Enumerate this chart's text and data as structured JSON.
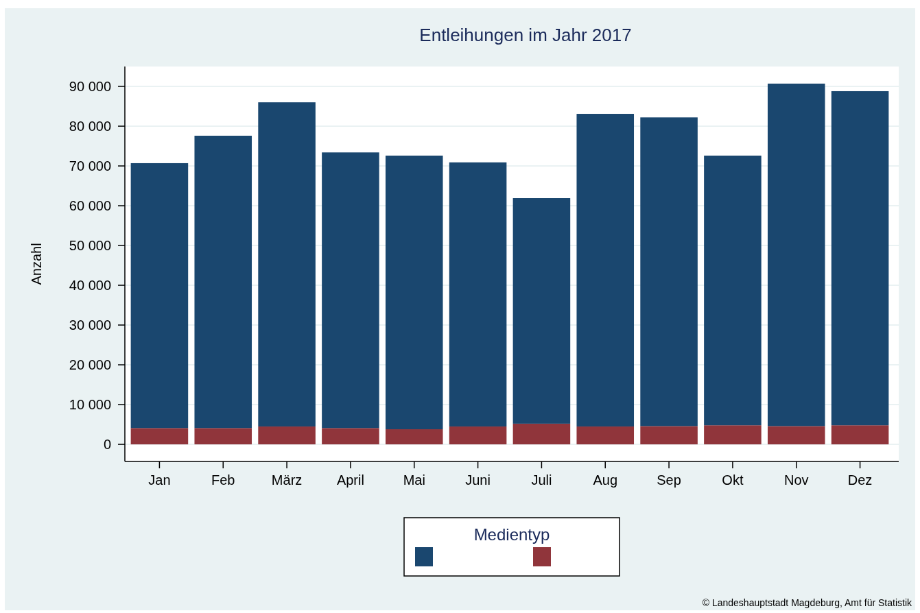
{
  "chart_data": {
    "type": "bar",
    "title": "Entleihungen im Jahr 2017",
    "ylabel": "Anzahl",
    "legend_title": "Medientyp",
    "stacked": true,
    "grid": "y",
    "categories": [
      "Jan",
      "Feb",
      "März",
      "April",
      "Mai",
      "Juni",
      "Juli",
      "Aug",
      "Sep",
      "Okt",
      "Nov",
      "Dez"
    ],
    "series": [
      {
        "color": "#90353b",
        "values": [
          4100,
          4100,
          4500,
          4100,
          3800,
          4500,
          5200,
          4500,
          4600,
          4800,
          4600,
          4800
        ]
      },
      {
        "color": "#1a476f",
        "values": [
          66600,
          73500,
          81500,
          69300,
          68800,
          66400,
          56700,
          78600,
          77600,
          67800,
          86100,
          84000
        ]
      }
    ],
    "ylim": [
      -4300,
      95000
    ],
    "yticks": [
      {
        "value": 0,
        "label": "0"
      },
      {
        "value": 10000,
        "label": "10 000"
      },
      {
        "value": 20000,
        "label": "20 000"
      },
      {
        "value": 30000,
        "label": "30 000"
      },
      {
        "value": 40000,
        "label": "40 000"
      },
      {
        "value": 50000,
        "label": "50 000"
      },
      {
        "value": 60000,
        "label": "60 000"
      },
      {
        "value": 70000,
        "label": "70 000"
      },
      {
        "value": 80000,
        "label": "80 000"
      },
      {
        "value": 90000,
        "label": "90 000"
      }
    ],
    "annotations": [
      "© Landeshauptstadt Magdeburg, Amt für Statistik"
    ]
  }
}
